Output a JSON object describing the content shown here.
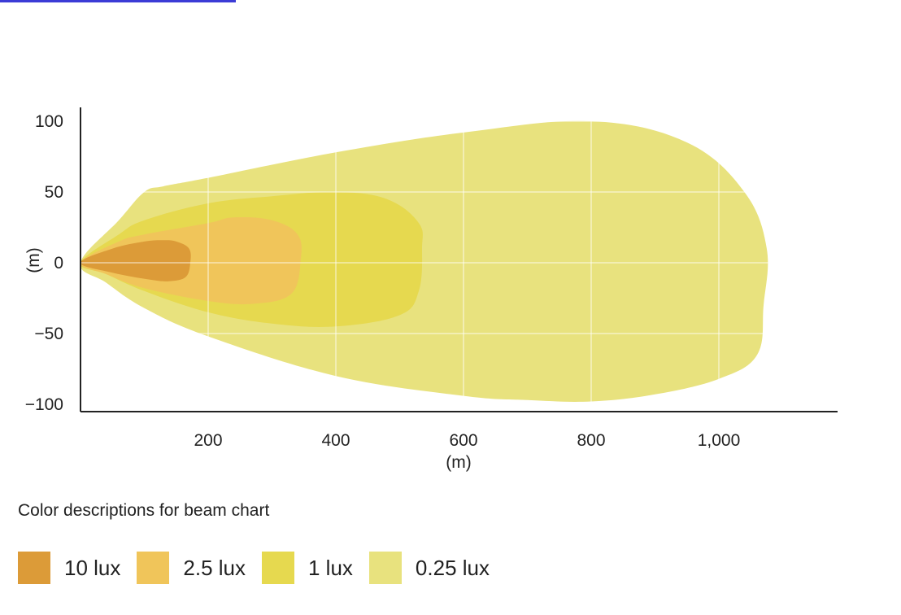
{
  "legend_title": "Color descriptions for beam chart",
  "chart_data": {
    "type": "area",
    "x_unit": "(m)",
    "y_unit": "(m)",
    "x_ticks": [
      "200",
      "400",
      "600",
      "800",
      "1,000"
    ],
    "x_tick_values": [
      200,
      400,
      600,
      800,
      1000
    ],
    "y_ticks": [
      "100",
      "50",
      "0",
      "−50",
      "−100"
    ],
    "y_tick_values": [
      100,
      50,
      0,
      -50,
      -100
    ],
    "xlim": [
      0,
      1180
    ],
    "ylim": [
      -100,
      100
    ],
    "grid": true,
    "legend_position": "bottom",
    "series": [
      {
        "name": "0.25 lux",
        "color": "#e8e27e",
        "contour": [
          [
            0,
            0
          ],
          [
            60,
            30
          ],
          [
            100,
            50
          ],
          [
            130,
            54
          ],
          [
            200,
            60
          ],
          [
            400,
            78
          ],
          [
            600,
            92
          ],
          [
            800,
            100
          ],
          [
            950,
            85
          ],
          [
            1040,
            50
          ],
          [
            1075,
            10
          ],
          [
            1070,
            -30
          ],
          [
            1060,
            -65
          ],
          [
            1000,
            -82
          ],
          [
            900,
            -93
          ],
          [
            800,
            -98
          ],
          [
            700,
            -97
          ],
          [
            600,
            -94
          ],
          [
            400,
            -80
          ],
          [
            200,
            -52
          ],
          [
            100,
            -32
          ],
          [
            40,
            -14
          ]
        ]
      },
      {
        "name": "1 lux",
        "color": "#e6d94f",
        "contour": [
          [
            0,
            0
          ],
          [
            60,
            20
          ],
          [
            100,
            30
          ],
          [
            200,
            42
          ],
          [
            300,
            47
          ],
          [
            400,
            50
          ],
          [
            480,
            45
          ],
          [
            530,
            28
          ],
          [
            535,
            10
          ],
          [
            530,
            -20
          ],
          [
            500,
            -37
          ],
          [
            400,
            -45
          ],
          [
            300,
            -43
          ],
          [
            200,
            -35
          ],
          [
            100,
            -20
          ],
          [
            40,
            -8
          ]
        ]
      },
      {
        "name": "2.5 lux",
        "color": "#f0c55a",
        "contour": [
          [
            0,
            0
          ],
          [
            60,
            15
          ],
          [
            100,
            20
          ],
          [
            200,
            28
          ],
          [
            240,
            32
          ],
          [
            300,
            30
          ],
          [
            340,
            20
          ],
          [
            345,
            2
          ],
          [
            330,
            -22
          ],
          [
            270,
            -29
          ],
          [
            200,
            -27
          ],
          [
            100,
            -18
          ],
          [
            40,
            -8
          ]
        ]
      },
      {
        "name": "10 lux",
        "color": "#dc9b38",
        "contour": [
          [
            0,
            0
          ],
          [
            50,
            10
          ],
          [
            100,
            15
          ],
          [
            130,
            16
          ],
          [
            150,
            15
          ],
          [
            170,
            10
          ],
          [
            172,
            0
          ],
          [
            165,
            -10
          ],
          [
            140,
            -13
          ],
          [
            110,
            -12
          ],
          [
            50,
            -7
          ]
        ]
      }
    ]
  }
}
